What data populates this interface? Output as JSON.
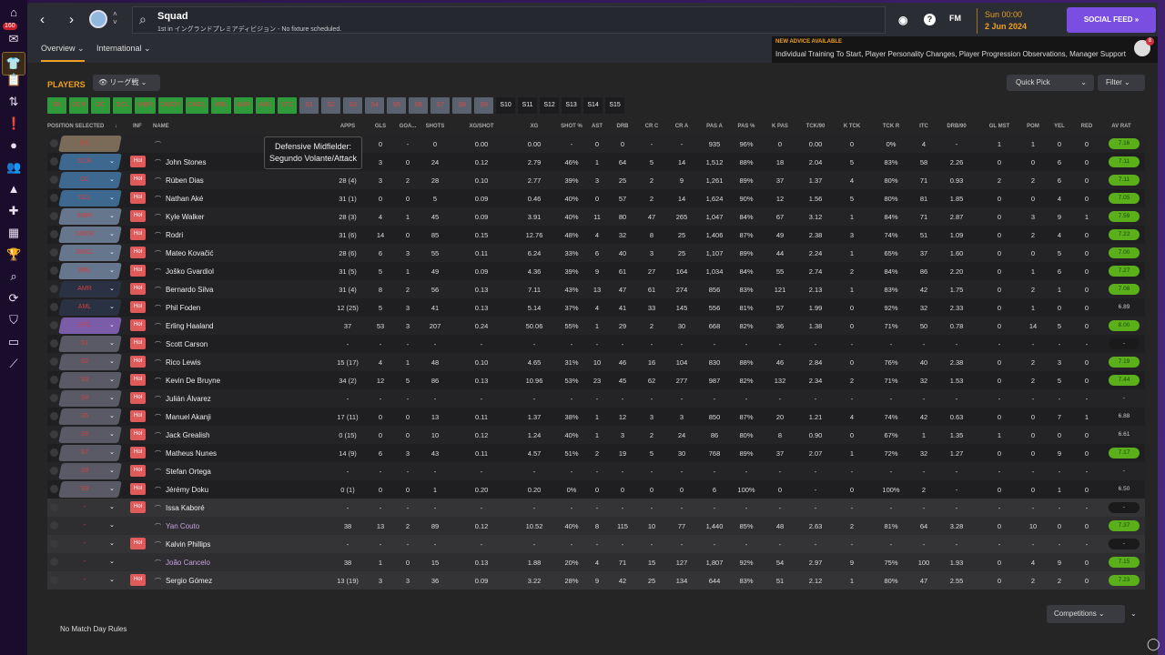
{
  "sidebar": {
    "badge": "160",
    "icons": [
      "home-icon",
      "inbox-icon",
      "squad-icon",
      "tactics-icon",
      "staff-icon",
      "news-icon",
      "ball-icon",
      "people-icon",
      "training-icon",
      "medical-icon",
      "calendar-icon",
      "trophy-icon",
      "search-icon",
      "transfer-icon",
      "club-icon",
      "finance-icon",
      "stats-icon"
    ]
  },
  "header": {
    "title": "Squad",
    "subtitle": "1st in イングランドプレミアディビジョン - No fixture scheduled.",
    "fm": "FM",
    "day_time": "Sun 00:00",
    "date": "2 Jun 2024",
    "social_feed": "SOCIAL FEED »"
  },
  "tabs": [
    {
      "label": "Overview ⌄"
    },
    {
      "label": "International ⌄"
    }
  ],
  "advice": {
    "title": "NEW ADVICE AVAILABLE",
    "text": "Individual Training To Start, Player Personality Changes, Player Progression Observations, Manager Support",
    "badge": "8"
  },
  "players_label": "PLAYERS",
  "view_select": "リーグ戦",
  "quick_pick": "Quick Pick",
  "filter": "Filter",
  "chips": [
    {
      "l": "GK",
      "t": "g"
    },
    {
      "l": "DCR",
      "t": "g"
    },
    {
      "l": "DC",
      "t": "g"
    },
    {
      "l": "DCL",
      "t": "g"
    },
    {
      "l": "WBR",
      "t": "g"
    },
    {
      "l": "DMCR",
      "t": "g"
    },
    {
      "l": "DMCL",
      "t": "g"
    },
    {
      "l": "WBL",
      "t": "g"
    },
    {
      "l": "AMR",
      "t": "g"
    },
    {
      "l": "AML",
      "t": "g"
    },
    {
      "l": "STC",
      "t": "g"
    },
    {
      "l": "S1",
      "t": "s"
    },
    {
      "l": "S2",
      "t": "s"
    },
    {
      "l": "S3",
      "t": "s"
    },
    {
      "l": "S4",
      "t": "s"
    },
    {
      "l": "S5",
      "t": "s"
    },
    {
      "l": "S6",
      "t": "s"
    },
    {
      "l": "S7",
      "t": "s"
    },
    {
      "l": "S8",
      "t": "s"
    },
    {
      "l": "S9",
      "t": "s"
    },
    {
      "l": "S10",
      "t": "e"
    },
    {
      "l": "S11",
      "t": "e"
    },
    {
      "l": "S12",
      "t": "e"
    },
    {
      "l": "S13",
      "t": "e"
    },
    {
      "l": "S14",
      "t": "e"
    },
    {
      "l": "S15",
      "t": "e"
    }
  ],
  "columns": [
    "POSITION SELECTED",
    "↓",
    "INF",
    "NAME",
    "APPS",
    "GLS",
    "GOA...",
    "SHOTS",
    "XG/SHOT",
    "XG",
    "SHOT %",
    "AST",
    "DRB",
    "CR C",
    "CR A",
    "PAS A",
    "PAS %",
    "K PAS",
    "TCK/90",
    "K TCK",
    "TCK R",
    "ITC",
    "DRB/90",
    "GL MST",
    "POM",
    "YEL",
    "RED",
    "AV RAT"
  ],
  "tooltip": "Defensive Midfielder: Segundo Volante/Attack",
  "position_colors": {
    "gk": "#7a6a58",
    "def": "#3d6890",
    "mid": "#66768c",
    "am": "#2a3142",
    "st": "#7a5ca8",
    "sub": "#5a5a66",
    "rating_green": "#5aaf1a",
    "accent": "#f0a020"
  },
  "rows": [
    {
      "pos": "GK",
      "c": "gk",
      "name": "",
      "inf": false,
      "s": [
        "38",
        "0",
        "-",
        "0",
        "0.00",
        "0.00",
        "-",
        "0",
        "0",
        "-",
        "-",
        "935",
        "96%",
        "0",
        "0.00",
        "0",
        "0%",
        "4",
        "-",
        "1",
        "1",
        "0",
        "0"
      ],
      "r": "7.16",
      "rt": "g"
    },
    {
      "pos": "DCR",
      "c": "def",
      "name": "John Stones",
      "inf": true,
      "s": [
        "30 (5)",
        "3",
        "0",
        "24",
        "0.12",
        "2.79",
        "46%",
        "1",
        "64",
        "5",
        "14",
        "1,512",
        "88%",
        "18",
        "2.04",
        "5",
        "83%",
        "58",
        "2.26",
        "0",
        "0",
        "6",
        "0"
      ],
      "r": "7.11",
      "rt": "g"
    },
    {
      "pos": "DC",
      "c": "def",
      "name": "Rúben Dias",
      "inf": true,
      "s": [
        "28 (4)",
        "3",
        "2",
        "28",
        "0.10",
        "2.77",
        "39%",
        "3",
        "25",
        "2",
        "9",
        "1,261",
        "89%",
        "37",
        "1.37",
        "4",
        "80%",
        "71",
        "0.93",
        "2",
        "2",
        "6",
        "0"
      ],
      "r": "7.11",
      "rt": "g"
    },
    {
      "pos": "DCL",
      "c": "def",
      "name": "Nathan Aké",
      "inf": true,
      "s": [
        "31 (1)",
        "0",
        "0",
        "5",
        "0.09",
        "0.46",
        "40%",
        "0",
        "57",
        "2",
        "14",
        "1,624",
        "90%",
        "12",
        "1.56",
        "5",
        "80%",
        "81",
        "1.85",
        "0",
        "0",
        "4",
        "0"
      ],
      "r": "7.05",
      "rt": "g"
    },
    {
      "pos": "WBR",
      "c": "mid",
      "name": "Kyle Walker",
      "inf": true,
      "s": [
        "28 (3)",
        "4",
        "1",
        "45",
        "0.09",
        "3.91",
        "40%",
        "11",
        "80",
        "47",
        "265",
        "1,047",
        "84%",
        "67",
        "3.12",
        "1",
        "84%",
        "71",
        "2.87",
        "0",
        "3",
        "9",
        "1"
      ],
      "r": "7.59",
      "rt": "g"
    },
    {
      "pos": "DMCR",
      "c": "mid",
      "name": "Rodri",
      "inf": true,
      "s": [
        "31 (6)",
        "14",
        "0",
        "85",
        "0.15",
        "12.76",
        "48%",
        "4",
        "32",
        "8",
        "25",
        "1,406",
        "87%",
        "49",
        "2.38",
        "3",
        "74%",
        "51",
        "1.09",
        "0",
        "2",
        "4",
        "0"
      ],
      "r": "7.22",
      "rt": "g"
    },
    {
      "pos": "DMCL",
      "c": "mid",
      "name": "Mateo Kovačić",
      "inf": true,
      "s": [
        "28 (6)",
        "6",
        "3",
        "55",
        "0.11",
        "6.24",
        "33%",
        "6",
        "40",
        "3",
        "25",
        "1,107",
        "89%",
        "44",
        "2.24",
        "1",
        "65%",
        "37",
        "1.60",
        "0",
        "0",
        "5",
        "0"
      ],
      "r": "7.00",
      "rt": "g"
    },
    {
      "pos": "WBL",
      "c": "mid",
      "name": "Joško Gvardiol",
      "inf": true,
      "s": [
        "31 (5)",
        "5",
        "1",
        "49",
        "0.09",
        "4.36",
        "39%",
        "9",
        "61",
        "27",
        "164",
        "1,034",
        "84%",
        "55",
        "2.74",
        "2",
        "84%",
        "86",
        "2.20",
        "0",
        "1",
        "6",
        "0"
      ],
      "r": "7.27",
      "rt": "g"
    },
    {
      "pos": "AMR",
      "c": "am",
      "name": "Bernardo Silva",
      "inf": true,
      "s": [
        "31 (4)",
        "8",
        "2",
        "56",
        "0.13",
        "7.11",
        "43%",
        "13",
        "47",
        "61",
        "274",
        "856",
        "83%",
        "121",
        "2.13",
        "1",
        "83%",
        "42",
        "1.75",
        "0",
        "2",
        "1",
        "0"
      ],
      "r": "7.08",
      "rt": "g"
    },
    {
      "pos": "AML",
      "c": "am",
      "name": "Phil Foden",
      "inf": true,
      "s": [
        "12 (25)",
        "5",
        "3",
        "41",
        "0.13",
        "5.14",
        "37%",
        "4",
        "41",
        "33",
        "145",
        "556",
        "81%",
        "57",
        "1.99",
        "0",
        "92%",
        "32",
        "2.33",
        "0",
        "1",
        "0",
        "0"
      ],
      "r": "6.89",
      "rt": "p"
    },
    {
      "pos": "STC",
      "c": "st",
      "name": "Erling Haaland",
      "inf": true,
      "s": [
        "37",
        "53",
        "3",
        "207",
        "0.24",
        "50.06",
        "55%",
        "1",
        "29",
        "2",
        "30",
        "668",
        "82%",
        "36",
        "1.38",
        "0",
        "71%",
        "50",
        "0.78",
        "0",
        "14",
        "5",
        "0"
      ],
      "r": "8.00",
      "rt": "g"
    },
    {
      "pos": "S1",
      "c": "sub",
      "name": "Scott Carson",
      "inf": true,
      "s": [
        "-",
        "-",
        "-",
        "-",
        "-",
        "-",
        "-",
        "-",
        "-",
        "-",
        "-",
        "-",
        "-",
        "-",
        "-",
        "-",
        "-",
        "-",
        "-",
        "-",
        "-",
        "-",
        "-"
      ],
      "r": "-",
      "rt": "d"
    },
    {
      "pos": "S2",
      "c": "sub",
      "name": "Rico Lewis",
      "inf": true,
      "s": [
        "15 (17)",
        "4",
        "1",
        "48",
        "0.10",
        "4.65",
        "31%",
        "10",
        "46",
        "16",
        "104",
        "830",
        "88%",
        "46",
        "2.84",
        "0",
        "76%",
        "40",
        "2.38",
        "0",
        "2",
        "3",
        "0"
      ],
      "r": "7.19",
      "rt": "g"
    },
    {
      "pos": "S3",
      "c": "sub",
      "name": "Kevin De Bruyne",
      "inf": true,
      "s": [
        "34 (2)",
        "12",
        "5",
        "86",
        "0.13",
        "10.96",
        "53%",
        "23",
        "45",
        "62",
        "277",
        "987",
        "82%",
        "132",
        "2.34",
        "2",
        "71%",
        "32",
        "1.53",
        "0",
        "2",
        "5",
        "0"
      ],
      "r": "7.44",
      "rt": "g"
    },
    {
      "pos": "S4",
      "c": "sub",
      "name": "Julián Álvarez",
      "inf": true,
      "s": [
        "-",
        "-",
        "-",
        "-",
        "-",
        "-",
        "-",
        "-",
        "-",
        "-",
        "-",
        "-",
        "-",
        "-",
        "-",
        "-",
        "-",
        "-",
        "-",
        "-",
        "-",
        "-",
        "-"
      ],
      "r": "-",
      "rt": "p"
    },
    {
      "pos": "S5",
      "c": "sub",
      "name": "Manuel Akanji",
      "inf": true,
      "s": [
        "17 (11)",
        "0",
        "0",
        "13",
        "0.11",
        "1.37",
        "38%",
        "1",
        "12",
        "3",
        "3",
        "850",
        "87%",
        "20",
        "1.21",
        "4",
        "74%",
        "42",
        "0.63",
        "0",
        "0",
        "7",
        "1"
      ],
      "r": "6.88",
      "rt": "p"
    },
    {
      "pos": "S6",
      "c": "sub",
      "name": "Jack Grealish",
      "inf": true,
      "s": [
        "0 (15)",
        "0",
        "0",
        "10",
        "0.12",
        "1.24",
        "40%",
        "1",
        "3",
        "2",
        "24",
        "86",
        "80%",
        "8",
        "0.90",
        "0",
        "67%",
        "1",
        "1.35",
        "1",
        "0",
        "0",
        "0"
      ],
      "r": "6.61",
      "rt": "p"
    },
    {
      "pos": "S7",
      "c": "sub",
      "name": "Matheus Nunes",
      "inf": true,
      "s": [
        "14 (9)",
        "6",
        "3",
        "43",
        "0.11",
        "4.57",
        "51%",
        "2",
        "19",
        "5",
        "30",
        "768",
        "89%",
        "37",
        "2.07",
        "1",
        "72%",
        "32",
        "1.27",
        "0",
        "0",
        "9",
        "0"
      ],
      "r": "7.17",
      "rt": "g"
    },
    {
      "pos": "S8",
      "c": "sub",
      "name": "Stefan Ortega",
      "inf": true,
      "s": [
        "-",
        "-",
        "-",
        "-",
        "-",
        "-",
        "-",
        "-",
        "-",
        "-",
        "-",
        "-",
        "-",
        "-",
        "-",
        "-",
        "-",
        "-",
        "-",
        "-",
        "-",
        "-",
        "-"
      ],
      "r": "-",
      "rt": "p"
    },
    {
      "pos": "S9",
      "c": "sub",
      "name": "Jérémy Doku",
      "inf": true,
      "s": [
        "0 (1)",
        "0",
        "0",
        "1",
        "0.20",
        "0.20",
        "0%",
        "0",
        "0",
        "0",
        "0",
        "6",
        "100%",
        "0",
        "-",
        "0",
        "100%",
        "2",
        "-",
        "0",
        "0",
        "1",
        "0"
      ],
      "r": "6.50",
      "rt": "p"
    },
    {
      "pos": "-",
      "c": "",
      "name": "Issa Kaboré",
      "inf": true,
      "alt": true,
      "s": [
        "-",
        "-",
        "-",
        "-",
        "-",
        "-",
        "-",
        "-",
        "-",
        "-",
        "-",
        "-",
        "-",
        "-",
        "-",
        "-",
        "-",
        "-",
        "-",
        "-",
        "-",
        "-",
        "-"
      ],
      "r": "-",
      "rt": "d"
    },
    {
      "pos": "-",
      "c": "",
      "name": "Yan Couto",
      "inf": false,
      "loan": true,
      "alt": true,
      "s": [
        "38",
        "13",
        "2",
        "89",
        "0.12",
        "10.52",
        "40%",
        "8",
        "115",
        "10",
        "77",
        "1,440",
        "85%",
        "48",
        "2.63",
        "2",
        "81%",
        "64",
        "3.28",
        "0",
        "10",
        "0",
        "0"
      ],
      "r": "7.37",
      "rt": "g"
    },
    {
      "pos": "-",
      "c": "",
      "name": "Kalvin Phillips",
      "inf": true,
      "alt": true,
      "s": [
        "-",
        "-",
        "-",
        "-",
        "-",
        "-",
        "-",
        "-",
        "-",
        "-",
        "-",
        "-",
        "-",
        "-",
        "-",
        "-",
        "-",
        "-",
        "-",
        "-",
        "-",
        "-",
        "-"
      ],
      "r": "-",
      "rt": "d"
    },
    {
      "pos": "-",
      "c": "",
      "name": "João Cancelo",
      "inf": false,
      "loan": true,
      "alt": true,
      "s": [
        "38",
        "1",
        "0",
        "15",
        "0.13",
        "1.88",
        "20%",
        "4",
        "71",
        "15",
        "127",
        "1,807",
        "92%",
        "54",
        "2.97",
        "9",
        "75%",
        "100",
        "1.93",
        "0",
        "4",
        "9",
        "0"
      ],
      "r": "7.15",
      "rt": "g"
    },
    {
      "pos": "-",
      "c": "",
      "name": "Sergio Gómez",
      "inf": true,
      "alt": true,
      "s": [
        "13 (19)",
        "3",
        "3",
        "36",
        "0.09",
        "3.22",
        "28%",
        "9",
        "42",
        "25",
        "134",
        "644",
        "83%",
        "51",
        "2.12",
        "1",
        "80%",
        "47",
        "2.55",
        "0",
        "2",
        "2",
        "0"
      ],
      "r": "7.23",
      "rt": "g"
    }
  ],
  "inf_label": "Hol",
  "competitions": "Competitions ⌄",
  "no_match_day_rules": "No Match Day Rules"
}
